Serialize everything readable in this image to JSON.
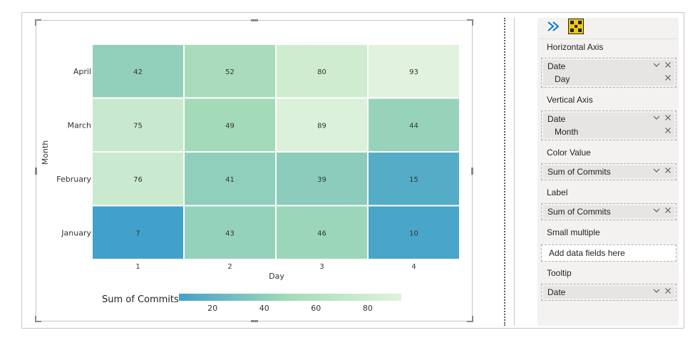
{
  "chart_data": {
    "type": "heatmap",
    "x": [
      1,
      2,
      3,
      4
    ],
    "y": [
      "April",
      "March",
      "February",
      "January"
    ],
    "values": [
      [
        42,
        52,
        80,
        93
      ],
      [
        75,
        49,
        89,
        44
      ],
      [
        76,
        41,
        39,
        15
      ],
      [
        7,
        43,
        46,
        10
      ]
    ],
    "xlabel": "Day",
    "ylabel": "Month",
    "legend": {
      "title": "Sum of Commits",
      "ticks": [
        20,
        40,
        60,
        80
      ],
      "range": [
        7,
        93
      ],
      "placement": "bottom-left"
    },
    "colors": {
      "low": "#42a1cb",
      "mid": "#a5dbb8",
      "high": "#e1f3dc"
    }
  },
  "pane": {
    "sections": [
      {
        "title": "Horizontal Axis",
        "fields": [
          {
            "label": "Date",
            "sub": false
          },
          {
            "label": "Day",
            "sub": true
          }
        ]
      },
      {
        "title": "Vertical Axis",
        "fields": [
          {
            "label": "Date",
            "sub": false
          },
          {
            "label": "Month",
            "sub": true
          }
        ]
      },
      {
        "title": "Color Value",
        "fields": [
          {
            "label": "Sum of Commits",
            "sub": false
          }
        ]
      },
      {
        "title": "Label",
        "fields": [
          {
            "label": "Sum of Commits",
            "sub": false
          }
        ]
      },
      {
        "title": "Small multiple",
        "placeholder": "Add data fields here"
      },
      {
        "title": "Tooltip",
        "fields": [
          {
            "label": "Date",
            "sub": false
          }
        ]
      }
    ],
    "icons": {
      "expand": "chevron-double-right-icon",
      "visual": "matrix-visual-icon"
    },
    "accent": "#0078d4"
  }
}
